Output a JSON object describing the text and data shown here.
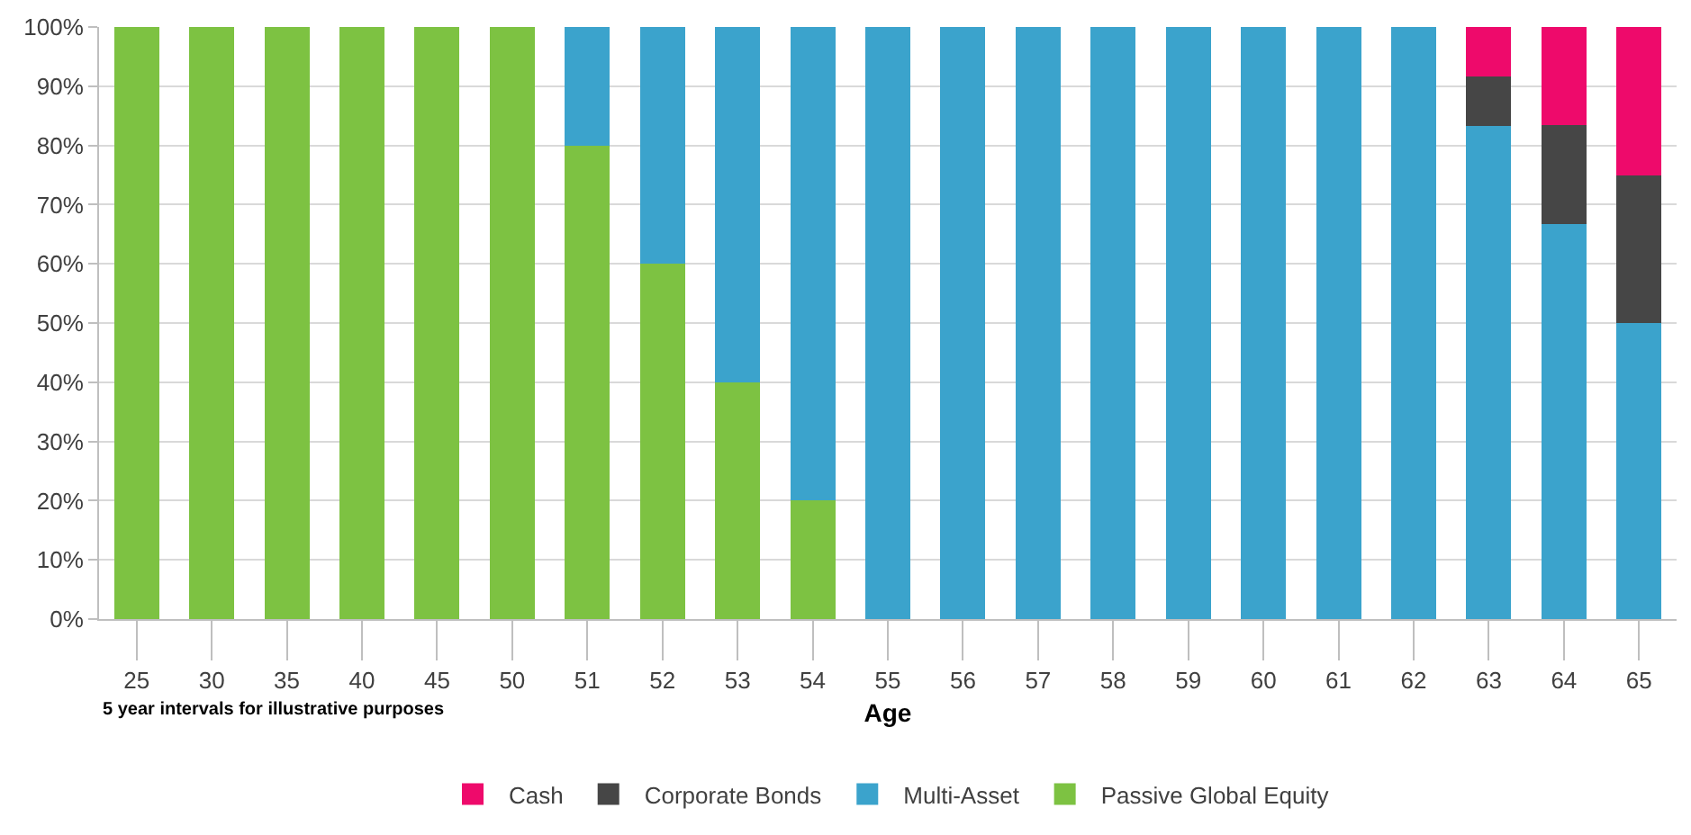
{
  "chart_data": {
    "type": "bar",
    "stacked": true,
    "xlabel": "Age",
    "categories": [
      "25",
      "30",
      "35",
      "40",
      "45",
      "50",
      "51",
      "52",
      "53",
      "54",
      "55",
      "56",
      "57",
      "58",
      "59",
      "60",
      "61",
      "62",
      "63",
      "64",
      "65"
    ],
    "series": [
      {
        "name": "Passive Global Equity",
        "color": "#7dc242",
        "values": [
          100,
          100,
          100,
          100,
          100,
          100,
          80,
          60,
          40,
          20,
          0,
          0,
          0,
          0,
          0,
          0,
          0,
          0,
          0,
          0,
          0
        ]
      },
      {
        "name": "Multi-Asset",
        "color": "#3ba3cc",
        "values": [
          0,
          0,
          0,
          0,
          0,
          0,
          20,
          40,
          60,
          80,
          100,
          100,
          100,
          100,
          100,
          100,
          100,
          100,
          83.3,
          66.7,
          50
        ]
      },
      {
        "name": "Corporate Bonds",
        "color": "#464646",
        "values": [
          0,
          0,
          0,
          0,
          0,
          0,
          0,
          0,
          0,
          0,
          0,
          0,
          0,
          0,
          0,
          0,
          0,
          0,
          8.3,
          16.7,
          25
        ]
      },
      {
        "name": "Cash",
        "color": "#ee0a6b",
        "values": [
          0,
          0,
          0,
          0,
          0,
          0,
          0,
          0,
          0,
          0,
          0,
          0,
          0,
          0,
          0,
          0,
          0,
          0,
          8.4,
          16.6,
          25
        ]
      }
    ],
    "ylim": [
      0,
      100
    ],
    "yticks": [
      {
        "value": 0,
        "label": "0%"
      },
      {
        "value": 10,
        "label": "10%"
      },
      {
        "value": 20,
        "label": "20%"
      },
      {
        "value": 30,
        "label": "30%"
      },
      {
        "value": 40,
        "label": "40%"
      },
      {
        "value": 50,
        "label": "50%"
      },
      {
        "value": 60,
        "label": "60%"
      },
      {
        "value": 70,
        "label": "70%"
      },
      {
        "value": 80,
        "label": "80%"
      },
      {
        "value": 90,
        "label": "90%"
      },
      {
        "value": 100,
        "label": "100%"
      }
    ],
    "grid": "y",
    "legend": "bottom",
    "annotations": [
      "5 year intervals for illustrative purposes"
    ]
  }
}
